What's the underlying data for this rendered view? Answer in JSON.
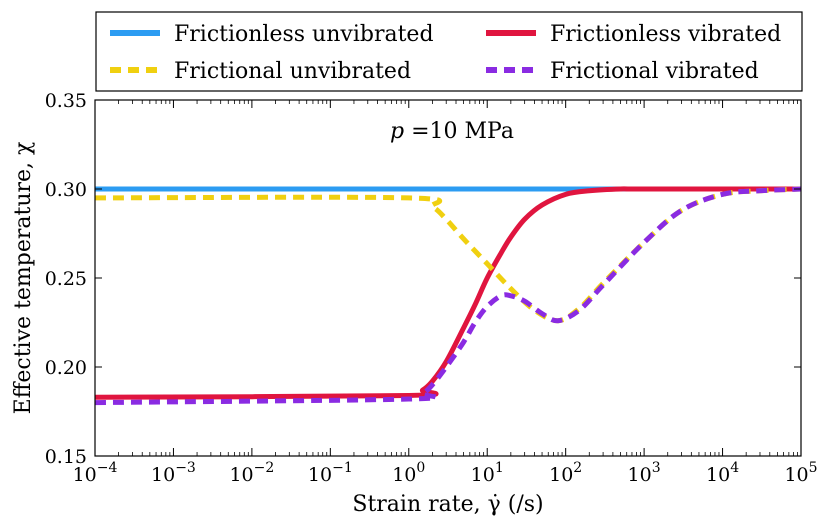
{
  "chart_data": {
    "type": "line",
    "title": "",
    "xlabel": "Strain rate, γ̇ (/s)",
    "ylabel": "Effective temperature, χ",
    "x_scale": "log",
    "xlim": [
      0.0001,
      100000
    ],
    "ylim": [
      0.15,
      0.35
    ],
    "x_tick_labels": [
      {
        "value": 0.0001,
        "base": "10",
        "exp": "−4"
      },
      {
        "value": 0.001,
        "base": "10",
        "exp": "−3"
      },
      {
        "value": 0.01,
        "base": "10",
        "exp": "−2"
      },
      {
        "value": 0.1,
        "base": "10",
        "exp": "−1"
      },
      {
        "value": 1,
        "base": "10",
        "exp": "0"
      },
      {
        "value": 10,
        "base": "10",
        "exp": "1"
      },
      {
        "value": 100,
        "base": "10",
        "exp": "2"
      },
      {
        "value": 1000,
        "base": "10",
        "exp": "3"
      },
      {
        "value": 10000,
        "base": "10",
        "exp": "4"
      },
      {
        "value": 100000,
        "base": "10",
        "exp": "5"
      }
    ],
    "y_ticks": [
      0.15,
      0.2,
      0.25,
      0.3,
      0.35
    ],
    "y_tick_labels": [
      "0.15",
      "0.20",
      "0.25",
      "0.30",
      "0.35"
    ],
    "grid": false,
    "legend_position": "top, above plot",
    "annotation": {
      "text": "p =10 MPa",
      "var": "p",
      "rest": " =10 MPa"
    },
    "series": [
      {
        "name": "Frictionless unvibrated",
        "color": "#2c9cf2",
        "style": "solid",
        "x": [
          0.0001,
          100000
        ],
        "y": [
          0.3,
          0.3
        ]
      },
      {
        "name": "Frictionless vibrated",
        "color": "#e0153f",
        "style": "solid",
        "x": [
          0.0001,
          1,
          1.5,
          2,
          3,
          5,
          7,
          10,
          15,
          20,
          30,
          50,
          100,
          200,
          500,
          1000,
          100000
        ],
        "y": [
          0.183,
          0.184,
          0.187,
          0.192,
          0.203,
          0.222,
          0.235,
          0.25,
          0.264,
          0.273,
          0.283,
          0.291,
          0.297,
          0.299,
          0.3,
          0.3,
          0.3
        ]
      },
      {
        "name": "Frictional unvibrated",
        "color": "#f0d010",
        "style": "dashed",
        "x": [
          0.0001,
          1,
          2,
          3,
          5,
          10,
          20,
          40,
          80,
          150,
          300,
          1000,
          3000,
          10000,
          30000,
          100000
        ],
        "y": [
          0.295,
          0.295,
          0.29,
          0.283,
          0.272,
          0.258,
          0.244,
          0.232,
          0.226,
          0.233,
          0.247,
          0.27,
          0.288,
          0.297,
          0.299,
          0.3
        ]
      },
      {
        "name": "Frictional vibrated",
        "color": "#8a2be2",
        "style": "dashed",
        "x": [
          0.0001,
          1,
          1.5,
          2,
          3,
          5,
          7,
          10,
          15,
          20,
          30,
          50,
          80,
          150,
          300,
          1000,
          3000,
          10000,
          30000,
          100000
        ],
        "y": [
          0.18,
          0.182,
          0.185,
          0.19,
          0.2,
          0.214,
          0.225,
          0.234,
          0.24,
          0.24,
          0.237,
          0.23,
          0.226,
          0.232,
          0.246,
          0.27,
          0.288,
          0.297,
          0.299,
          0.3
        ]
      }
    ]
  }
}
